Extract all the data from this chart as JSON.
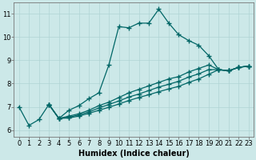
{
  "xlabel": "Humidex (Indice chaleur)",
  "xlim": [
    -0.5,
    23.5
  ],
  "ylim": [
    5.7,
    11.5
  ],
  "bg_color": "#cce8e8",
  "grid_color": "#b0d4d4",
  "line_color": "#006666",
  "lines": [
    {
      "x": [
        0,
        1,
        2,
        3,
        4,
        5,
        6,
        7,
        8,
        9,
        10,
        11,
        12,
        13,
        14,
        15,
        16,
        17,
        18,
        19,
        20,
        21,
        22,
        23
      ],
      "y": [
        7.0,
        6.2,
        6.45,
        7.1,
        6.5,
        6.85,
        7.05,
        7.35,
        7.6,
        8.8,
        10.45,
        10.4,
        10.6,
        10.6,
        11.2,
        10.6,
        10.1,
        9.85,
        9.65,
        9.2,
        8.6,
        8.55,
        8.7,
        8.75
      ]
    },
    {
      "x": [
        3,
        4,
        5,
        6,
        7,
        8,
        9,
        10,
        11,
        12,
        13,
        14,
        15,
        16,
        17,
        18,
        19,
        20,
        21,
        22,
        23
      ],
      "y": [
        7.1,
        6.5,
        6.6,
        6.7,
        6.85,
        7.05,
        7.2,
        7.4,
        7.6,
        7.75,
        7.9,
        8.05,
        8.2,
        8.3,
        8.5,
        8.65,
        8.8,
        8.6,
        8.55,
        8.7,
        8.75
      ]
    },
    {
      "x": [
        3,
        4,
        5,
        6,
        7,
        8,
        9,
        10,
        11,
        12,
        13,
        14,
        15,
        16,
        17,
        18,
        19,
        20,
        21,
        22,
        23
      ],
      "y": [
        7.1,
        6.5,
        6.55,
        6.65,
        6.78,
        6.95,
        7.1,
        7.25,
        7.42,
        7.55,
        7.7,
        7.85,
        7.97,
        8.1,
        8.28,
        8.42,
        8.6,
        8.6,
        8.55,
        8.7,
        8.75
      ]
    },
    {
      "x": [
        3,
        4,
        5,
        6,
        7,
        8,
        9,
        10,
        11,
        12,
        13,
        14,
        15,
        16,
        17,
        18,
        19,
        20,
        21,
        22,
        23
      ],
      "y": [
        7.1,
        6.5,
        6.52,
        6.6,
        6.72,
        6.85,
        6.98,
        7.12,
        7.27,
        7.4,
        7.52,
        7.65,
        7.77,
        7.88,
        8.05,
        8.2,
        8.4,
        8.6,
        8.55,
        8.7,
        8.75
      ]
    }
  ],
  "yticks": [
    6,
    7,
    8,
    9,
    10,
    11
  ],
  "xticks": [
    0,
    1,
    2,
    3,
    4,
    5,
    6,
    7,
    8,
    9,
    10,
    11,
    12,
    13,
    14,
    15,
    16,
    17,
    18,
    19,
    20,
    21,
    22,
    23
  ],
  "marker": "+",
  "markersize": 4,
  "linewidth": 0.9,
  "fontsize_label": 7,
  "fontsize_tick": 6
}
